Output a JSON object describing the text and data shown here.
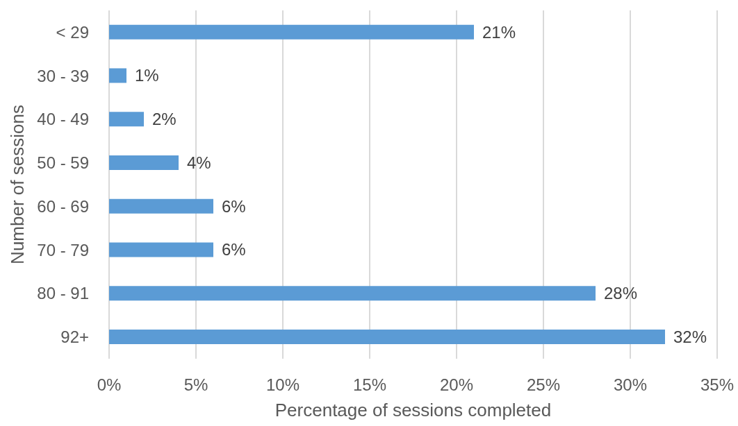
{
  "chart_data": {
    "type": "bar",
    "orientation": "horizontal",
    "xlabel": "Percentage of sessions completed",
    "ylabel": "Number of sessions",
    "categories": [
      "< 29",
      "30 - 39",
      "40 - 49",
      "50 - 59",
      "60 - 69",
      "70 - 79",
      "80 - 91",
      "92+"
    ],
    "values": [
      21,
      1,
      2,
      4,
      6,
      6,
      28,
      32
    ],
    "value_labels": [
      "21%",
      "1%",
      "2%",
      "4%",
      "6%",
      "6%",
      "28%",
      "32%"
    ],
    "color": "#5b9bd5",
    "xlim": [
      0,
      35
    ],
    "xticks": [
      {
        "value": 0,
        "label": "0%"
      },
      {
        "value": 5,
        "label": "5%"
      },
      {
        "value": 10,
        "label": "10%"
      },
      {
        "value": 15,
        "label": "15%"
      },
      {
        "value": 20,
        "label": "20%"
      },
      {
        "value": 25,
        "label": "25%"
      },
      {
        "value": 30,
        "label": "30%"
      },
      {
        "value": 35,
        "label": "35%"
      }
    ],
    "grid": "x"
  }
}
